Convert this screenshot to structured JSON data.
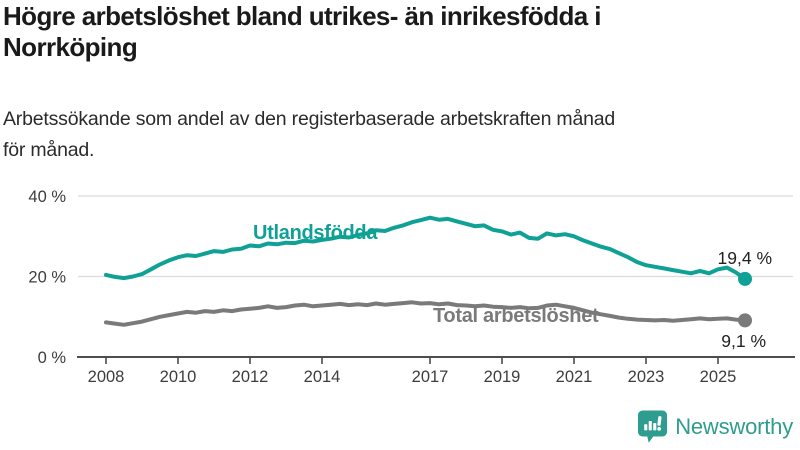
{
  "header": {
    "title_lines": [
      "Högre arbetslöshet bland utrikes- än inrikesfödda i",
      "Norrköping"
    ],
    "subtitle_lines": [
      "Arbetssökande som andel av den registerbaserade arbetskraften månad",
      "för månad."
    ]
  },
  "branding": {
    "logo_text": "Newsworthy",
    "logo_icon": "bar-chart-speech-bubble-icon",
    "brand_color": "#2f9c90"
  },
  "chart_data": {
    "type": "line",
    "unit": "%",
    "x_start": "2008 (monthly/quarterly points, Jan Apr Jul Oct)",
    "x_end": "Oct 2025",
    "xticks": [
      2008,
      2010,
      2012,
      2014,
      2017,
      2019,
      2021,
      2023,
      2025
    ],
    "yticks": [
      {
        "value": 0,
        "label": "0 %"
      },
      {
        "value": 20,
        "label": "20 %"
      },
      {
        "value": 40,
        "label": "40 %"
      }
    ],
    "ylim": [
      0,
      40
    ],
    "grid": "horizontal",
    "legend_position": "inline-labels",
    "series": [
      {
        "name": "Utlandsfödda",
        "color": "#0fa096",
        "end_value": 19.4,
        "end_label": "19,4 %",
        "values": [
          20.4,
          19.9,
          19.6,
          20.0,
          20.6,
          21.8,
          23.0,
          24.0,
          24.8,
          25.3,
          25.1,
          25.7,
          26.3,
          26.1,
          26.7,
          26.9,
          27.7,
          27.5,
          28.2,
          28.0,
          28.4,
          28.3,
          28.9,
          28.7,
          29.1,
          29.4,
          29.9,
          29.7,
          30.3,
          30.7,
          31.5,
          31.3,
          32.1,
          32.7,
          33.5,
          34.0,
          34.6,
          34.1,
          34.3,
          33.7,
          33.1,
          32.5,
          32.7,
          31.6,
          31.2,
          30.4,
          30.9,
          29.6,
          29.4,
          30.7,
          30.2,
          30.5,
          30.0,
          29.0,
          28.2,
          27.4,
          26.8,
          25.8,
          24.8,
          23.6,
          22.8,
          22.4,
          22.0,
          21.6,
          21.2,
          20.8,
          21.4,
          20.8,
          21.8,
          22.2,
          21.0,
          19.4
        ]
      },
      {
        "name": "Total arbetslöshet",
        "color": "#7a7a7a",
        "end_value": 9.1,
        "end_label": "9,1 %",
        "values": [
          8.6,
          8.3,
          8.0,
          8.4,
          8.8,
          9.4,
          10.0,
          10.4,
          10.8,
          11.2,
          11.0,
          11.4,
          11.2,
          11.6,
          11.4,
          11.8,
          12.0,
          12.2,
          12.6,
          12.2,
          12.4,
          12.8,
          13.0,
          12.6,
          12.8,
          13.0,
          13.2,
          12.9,
          13.1,
          12.9,
          13.3,
          13.0,
          13.2,
          13.4,
          13.6,
          13.3,
          13.4,
          13.1,
          13.3,
          12.9,
          12.8,
          12.6,
          12.8,
          12.5,
          12.4,
          12.2,
          12.4,
          12.1,
          12.2,
          12.8,
          13.0,
          12.6,
          12.2,
          11.6,
          11.0,
          10.6,
          10.2,
          9.8,
          9.5,
          9.3,
          9.2,
          9.1,
          9.2,
          9.0,
          9.2,
          9.4,
          9.6,
          9.4,
          9.5,
          9.6,
          9.3,
          9.1
        ]
      }
    ]
  }
}
